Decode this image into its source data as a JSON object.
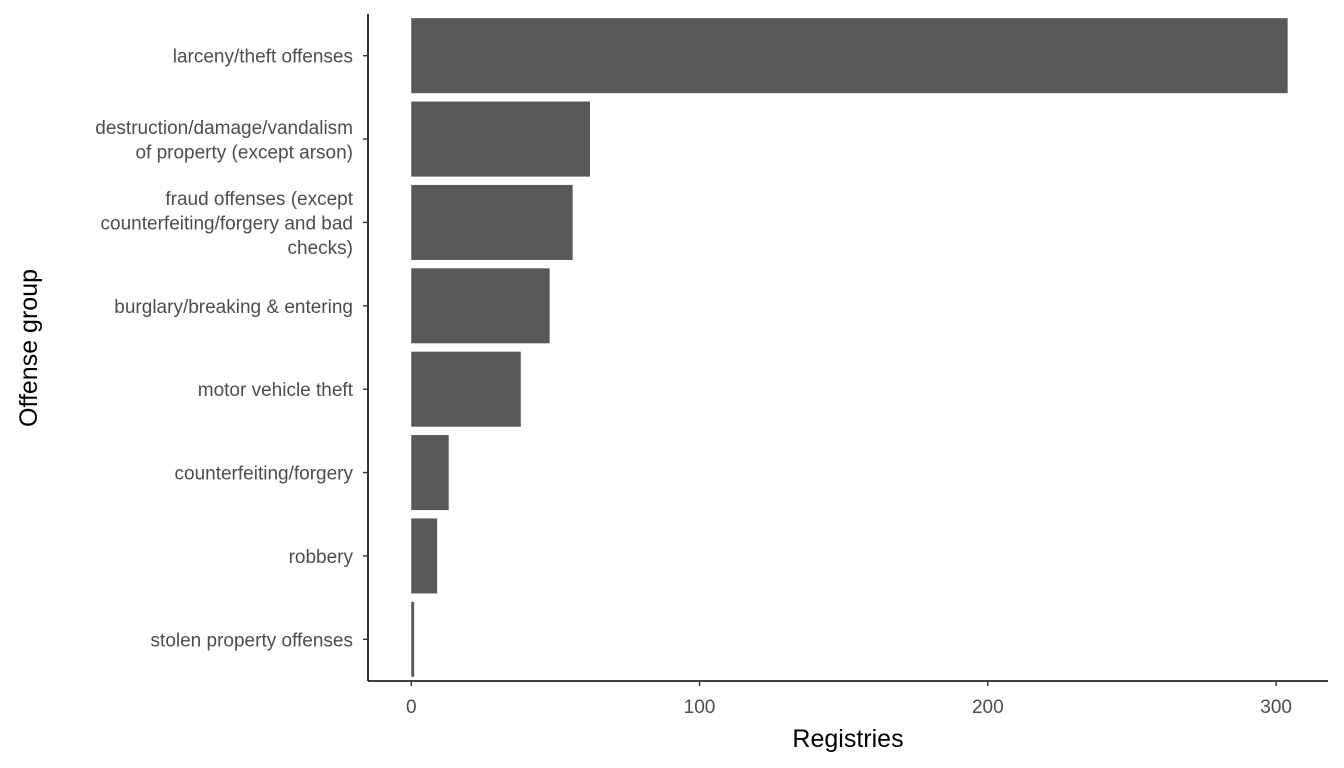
{
  "chart_data": {
    "type": "bar",
    "orientation": "horizontal",
    "xlabel": "Registries",
    "ylabel": "Offense group",
    "xlim": [
      -15,
      318
    ],
    "xticks": [
      0,
      100,
      200,
      300
    ],
    "grid": false,
    "bar_color": "#595959",
    "categories": [
      [
        "larceny/theft offenses"
      ],
      [
        "destruction/damage/vandalism",
        "of property (except arson)"
      ],
      [
        "fraud offenses (except",
        "counterfeiting/forgery and bad",
        "checks)"
      ],
      [
        "burglary/breaking & entering"
      ],
      [
        "motor vehicle theft"
      ],
      [
        "counterfeiting/forgery"
      ],
      [
        "robbery"
      ],
      [
        "stolen property offenses"
      ]
    ],
    "values": [
      304,
      62,
      56,
      48,
      38,
      13,
      9,
      1
    ]
  }
}
